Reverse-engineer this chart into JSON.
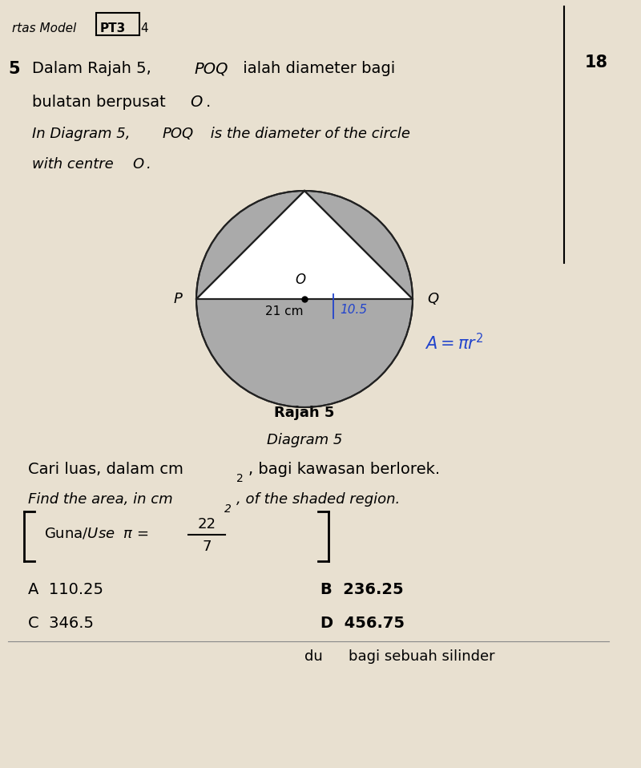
{
  "bg_color": "#e8e0d0",
  "pt3_text": "PT3",
  "page_num": "4",
  "right_num": "18",
  "diagram_label1": "Rajah 5",
  "diagram_label2": "Diagram 5",
  "circle_label_O": "O",
  "circle_label_P": "P",
  "circle_label_Q": "Q",
  "diameter_label": "21 cm",
  "handwritten_label": "10.5",
  "shaded_color": "#aaaaaa",
  "line_color": "#222222",
  "pi_frac_num": "22",
  "pi_frac_den": "7",
  "ans_A": "A  110.25",
  "ans_B": "B  236.25",
  "ans_C": "C  346.5",
  "ans_D": "D  456.75",
  "vertical_line_x": 0.88
}
